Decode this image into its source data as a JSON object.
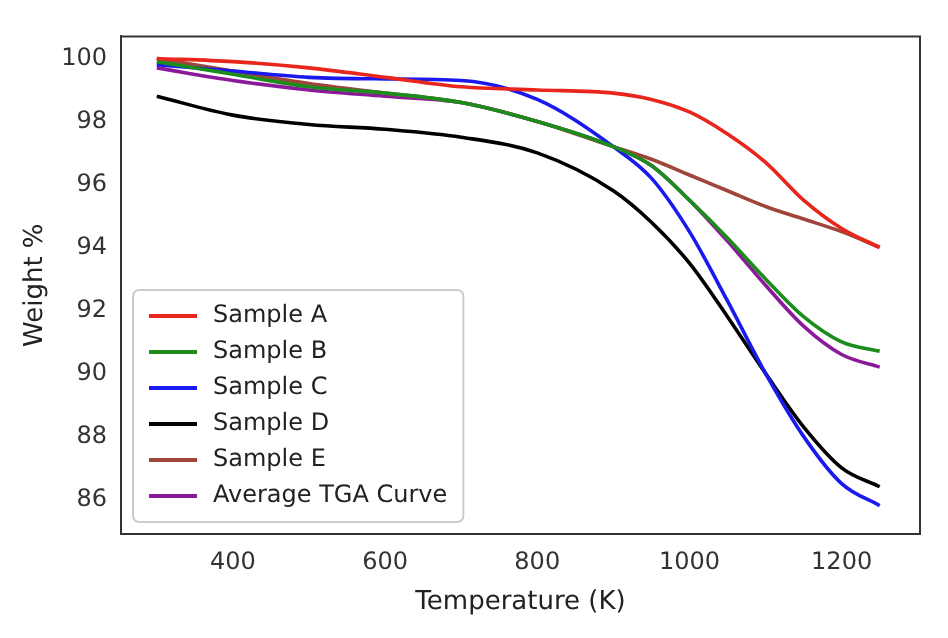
{
  "chart_data": {
    "type": "line",
    "xlabel": "Temperature (K)",
    "ylabel": "Weight %",
    "x": [
      300,
      400,
      500,
      600,
      700,
      800,
      900,
      950,
      1000,
      1050,
      1100,
      1150,
      1200,
      1250
    ],
    "series": [
      {
        "name": "Sample A",
        "color": "#e8261c",
        "values": [
          100.0,
          99.9,
          99.7,
          99.4,
          99.1,
          99.0,
          98.9,
          98.7,
          98.3,
          97.6,
          96.7,
          95.5,
          94.6,
          94.0
        ]
      },
      {
        "name": "Sample B",
        "color": "#1c8c1c",
        "values": [
          99.9,
          99.5,
          99.1,
          98.9,
          98.6,
          98.0,
          97.2,
          96.6,
          95.5,
          94.3,
          93.0,
          91.8,
          91.0,
          90.7
        ]
      },
      {
        "name": "Sample C",
        "color": "#1a1aee",
        "values": [
          99.8,
          99.6,
          99.4,
          99.35,
          99.3,
          98.7,
          97.2,
          96.2,
          94.5,
          92.3,
          90.0,
          88.0,
          86.5,
          85.8
        ]
      },
      {
        "name": "Sample D",
        "color": "#000000",
        "values": [
          98.8,
          98.2,
          97.9,
          97.75,
          97.5,
          97.0,
          95.8,
          94.8,
          93.5,
          91.8,
          90.0,
          88.3,
          87.0,
          86.4
        ]
      },
      {
        "name": "Sample E",
        "color": "#a0453a",
        "values": [
          100.0,
          99.6,
          99.2,
          98.9,
          98.6,
          98.0,
          97.2,
          96.8,
          96.3,
          95.8,
          95.3,
          94.9,
          94.5,
          94.0
        ]
      },
      {
        "name": "Average TGA Curve",
        "color": "#8b1a9b",
        "values": [
          99.7,
          99.3,
          99.0,
          98.8,
          98.6,
          98.0,
          97.2,
          96.6,
          95.5,
          94.2,
          92.8,
          91.5,
          90.6,
          90.2
        ]
      }
    ],
    "xlim": [
      253,
      1303
    ],
    "ylim": [
      84.9,
      100.7
    ],
    "xticks": [
      400,
      600,
      800,
      1000,
      1200
    ],
    "yticks": [
      86,
      88,
      90,
      92,
      94,
      96,
      98,
      100
    ],
    "grid": false,
    "legend": "bottom left",
    "marker": "none",
    "line_style": "solid"
  }
}
